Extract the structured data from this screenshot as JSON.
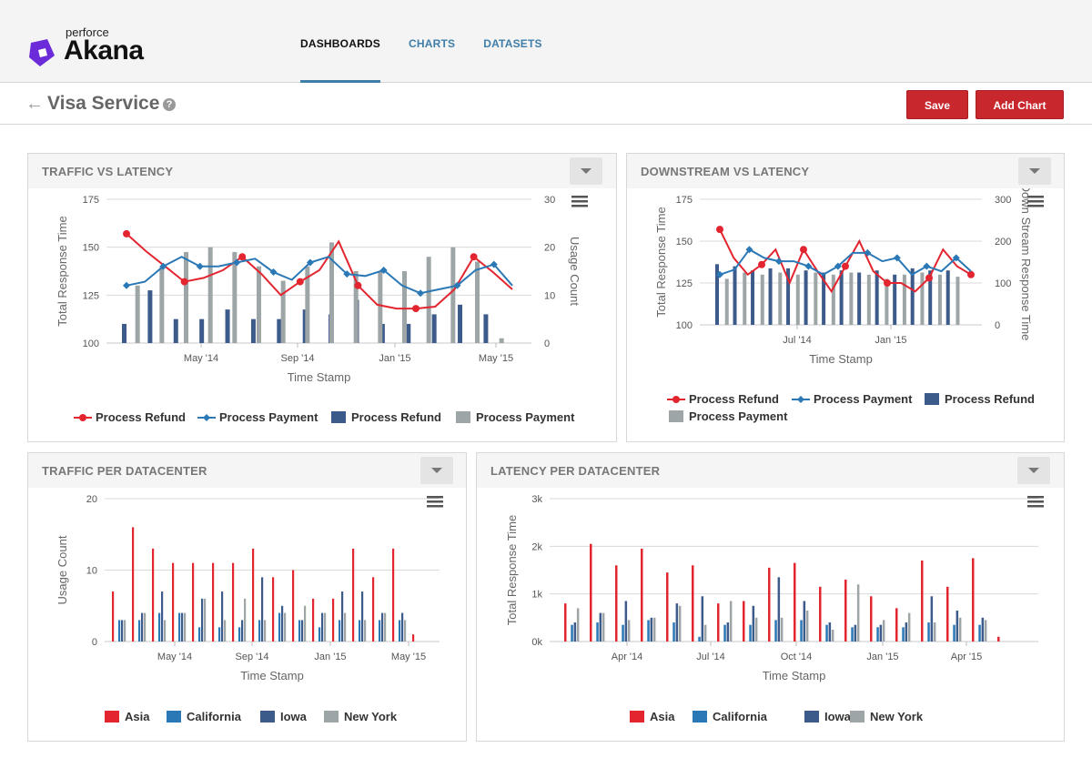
{
  "brand": {
    "small": "perforce",
    "name": "Akana"
  },
  "nav": [
    {
      "label": "DASHBOARDS",
      "active": true
    },
    {
      "label": "CHARTS",
      "active": false
    },
    {
      "label": "DATASETS",
      "active": false
    }
  ],
  "page": {
    "title": "Visa Service",
    "help": "?",
    "save_label": "Save",
    "add_chart_label": "Add Chart"
  },
  "colors": {
    "red": "#e32530",
    "blue": "#2a78b5",
    "navy": "#3c5a8a",
    "gray": "#9ea5a7",
    "brand": "#6c2bd9",
    "button": "#c8272d"
  },
  "panels": {
    "p1": {
      "title": "TRAFFIC VS LATENCY"
    },
    "p2": {
      "title": "DOWNSTREAM VS LATENCY"
    },
    "p3": {
      "title": "TRAFFIC PER DATACENTER"
    },
    "p4": {
      "title": "LATENCY PER DATACENTER"
    }
  },
  "chart_data": [
    {
      "type": "line",
      "title": "TRAFFIC VS LATENCY",
      "xlabel": "Time Stamp",
      "ylabel": "Total Response Time",
      "y2label": "Usage Count",
      "ylim": [
        100,
        175
      ],
      "y2lim": [
        0,
        30
      ],
      "yticks": [
        "175",
        "150",
        "125",
        "100"
      ],
      "y2ticks": [
        "30",
        "20",
        "10",
        "0"
      ],
      "xticks": [
        "May '14",
        "Sep '14",
        "Jan '15",
        "May '15"
      ],
      "legend": [
        "Process Refund",
        "Process Payment",
        "Process Refund",
        "Process Payment"
      ],
      "series": [
        {
          "name": "Process Refund",
          "kind": "line",
          "axis": "left",
          "values": [
            157,
            148,
            140,
            132,
            134,
            138,
            145,
            136,
            125,
            132,
            138,
            153,
            130,
            120,
            118,
            118,
            119,
            128,
            145,
            137,
            128
          ]
        },
        {
          "name": "Process Payment",
          "kind": "line",
          "axis": "left",
          "values": [
            130,
            132,
            140,
            145,
            140,
            140,
            142,
            144,
            137,
            133,
            142,
            145,
            136,
            135,
            138,
            130,
            126,
            128,
            130,
            138,
            141,
            130
          ]
        },
        {
          "name": "Process Refund",
          "kind": "bar",
          "axis": "right",
          "values": [
            4,
            11,
            5,
            5,
            7,
            5,
            5,
            7,
            6,
            9,
            4,
            4,
            6,
            8,
            6
          ]
        },
        {
          "name": "Process Payment",
          "kind": "bar",
          "axis": "right",
          "values": [
            12,
            16,
            19,
            20,
            19,
            16,
            13,
            16,
            21,
            15,
            15,
            15,
            18,
            20,
            17,
            1
          ]
        }
      ]
    },
    {
      "type": "line",
      "title": "DOWNSTREAM VS LATENCY",
      "xlabel": "Time Stamp",
      "ylabel": "Total Response Time",
      "y2label": "Down Stream Response Time",
      "ylim": [
        100,
        175
      ],
      "y2lim": [
        0,
        300
      ],
      "yticks": [
        "175",
        "150",
        "125",
        "100"
      ],
      "y2ticks": [
        "300",
        "200",
        "100",
        "0"
      ],
      "xticks": [
        "Jul '14",
        "Jan '15"
      ],
      "legend": [
        "Process Refund",
        "Process Payment",
        "Process Refund",
        "Process Payment"
      ],
      "series": [
        {
          "name": "Process Refund",
          "kind": "line",
          "axis": "left",
          "values": [
            157,
            140,
            130,
            136,
            145,
            125,
            145,
            132,
            120,
            135,
            150,
            132,
            125,
            125,
            120,
            128,
            145,
            135,
            130
          ]
        },
        {
          "name": "Process Payment",
          "kind": "line",
          "axis": "left",
          "values": [
            130,
            133,
            145,
            140,
            138,
            138,
            135,
            130,
            135,
            143,
            143,
            138,
            140,
            130,
            135,
            132,
            140,
            132
          ]
        },
        {
          "name": "Process Refund",
          "kind": "bar",
          "axis": "right",
          "values": [
            145,
            140,
            130,
            135,
            135,
            130,
            125,
            130,
            125,
            130,
            120,
            135,
            130,
            130
          ]
        },
        {
          "name": "Process Payment",
          "kind": "bar",
          "axis": "right",
          "values": [
            110,
            125,
            120,
            125,
            120,
            125,
            120,
            125,
            120,
            110,
            120,
            125,
            120,
            115
          ]
        }
      ]
    },
    {
      "type": "bar",
      "title": "TRAFFIC PER DATACENTER",
      "xlabel": "Time Stamp",
      "ylabel": "Usage Count",
      "ylim": [
        0,
        20
      ],
      "yticks": [
        "20",
        "10",
        "0"
      ],
      "xticks": [
        "May '14",
        "Sep '14",
        "Jan '15",
        "May '15"
      ],
      "legend": [
        "Asia",
        "California",
        "Iowa",
        "New York"
      ],
      "series": [
        {
          "name": "Asia",
          "values": [
            7,
            16,
            13,
            11,
            11,
            11,
            11,
            13,
            9,
            10,
            6,
            6,
            13,
            9,
            13,
            1
          ]
        },
        {
          "name": "California",
          "values": [
            3,
            3,
            4,
            4,
            2,
            2,
            2,
            3,
            4,
            3,
            2,
            3,
            3,
            3,
            3,
            0
          ]
        },
        {
          "name": "Iowa",
          "values": [
            3,
            4,
            7,
            4,
            6,
            7,
            3,
            9,
            5,
            3,
            4,
            7,
            7,
            4,
            4,
            0
          ]
        },
        {
          "name": "New York",
          "values": [
            3,
            4,
            3,
            4,
            6,
            3,
            6,
            3,
            4,
            5,
            4,
            4,
            3,
            4,
            3,
            0
          ]
        }
      ]
    },
    {
      "type": "bar",
      "title": "LATENCY PER DATACENTER",
      "xlabel": "Time Stamp",
      "ylabel": "Total Response Time",
      "ylim": [
        0,
        3000
      ],
      "yticks": [
        "3k",
        "2k",
        "1k",
        "0k"
      ],
      "xticks": [
        "Apr '14",
        "Jul '14",
        "Oct '14",
        "Jan '15",
        "Apr '15"
      ],
      "legend": [
        "Asia",
        "California",
        "Iowa",
        "New York"
      ],
      "series": [
        {
          "name": "Asia",
          "values": [
            800,
            2050,
            1600,
            1950,
            1450,
            1600,
            800,
            850,
            1550,
            1650,
            1150,
            1300,
            950,
            700,
            1700,
            1150,
            1750,
            100
          ]
        },
        {
          "name": "California",
          "values": [
            350,
            400,
            350,
            450,
            400,
            100,
            350,
            350,
            450,
            450,
            350,
            300,
            300,
            300,
            400,
            350,
            350,
            0
          ]
        },
        {
          "name": "Iowa",
          "values": [
            400,
            600,
            850,
            500,
            800,
            950,
            400,
            750,
            1350,
            850,
            400,
            350,
            350,
            400,
            950,
            650,
            500,
            0
          ]
        },
        {
          "name": "New York",
          "values": [
            700,
            600,
            450,
            500,
            750,
            350,
            850,
            500,
            500,
            650,
            250,
            1200,
            450,
            600,
            400,
            500,
            450,
            0
          ]
        }
      ]
    }
  ]
}
